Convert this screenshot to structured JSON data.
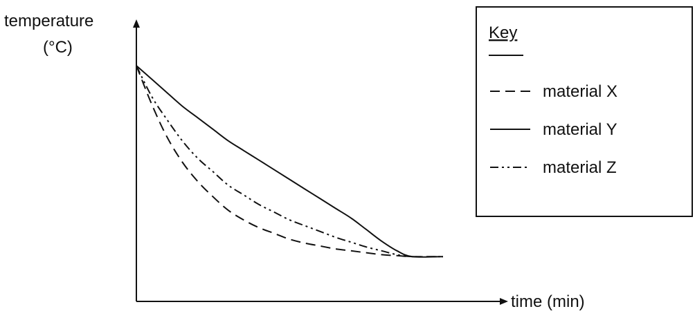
{
  "chart_data": {
    "type": "line",
    "ylabel_line1": "temperature",
    "ylabel_line2": "(°C)",
    "xlabel": "time (min)",
    "legend": {
      "title": "Key",
      "position": "top-right",
      "entries": [
        "material X",
        "material Y",
        "material Z"
      ]
    },
    "axes_ticks": "none",
    "grid": false,
    "xlim": [
      0,
      100
    ],
    "ylim": [
      0,
      100
    ],
    "series": [
      {
        "name": "material X",
        "style": "dashed",
        "x": [
          0,
          5,
          10,
          15,
          20,
          25,
          30,
          35,
          40,
          45,
          50,
          55,
          60,
          65,
          70,
          75,
          80,
          85,
          90,
          100
        ],
        "y": [
          100,
          80,
          63,
          50,
          40,
          32,
          25,
          20,
          16,
          13,
          10,
          8,
          6.5,
          5,
          4,
          3,
          2,
          1.5,
          1,
          1
        ]
      },
      {
        "name": "material Y",
        "style": "solid",
        "x": [
          0,
          5,
          10,
          15,
          20,
          25,
          30,
          35,
          40,
          45,
          50,
          55,
          60,
          65,
          70,
          75,
          80,
          85,
          90,
          100
        ],
        "y": [
          100,
          93,
          86,
          79,
          73,
          67,
          61,
          56,
          51,
          46,
          41,
          36,
          31,
          26,
          21,
          15,
          9,
          4,
          1,
          1
        ]
      },
      {
        "name": "material Z",
        "style": "dash-dot-dot",
        "x": [
          0,
          5,
          10,
          15,
          20,
          25,
          30,
          35,
          40,
          45,
          50,
          55,
          60,
          65,
          70,
          75,
          80,
          85,
          90,
          100
        ],
        "y": [
          100,
          84,
          72,
          61,
          52,
          45,
          38,
          33,
          28,
          24,
          20,
          17,
          14,
          11,
          8.5,
          6,
          4,
          2,
          1,
          1
        ]
      }
    ]
  }
}
